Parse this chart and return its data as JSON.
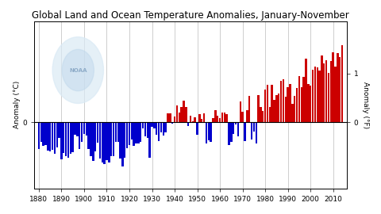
{
  "title": "Global Land and Ocean Temperature Anomalies, January-November",
  "ylabel_left": "Anomaly (°C)",
  "ylabel_right": "Anomaly (°F)",
  "years": [
    1880,
    1881,
    1882,
    1883,
    1884,
    1885,
    1886,
    1887,
    1888,
    1889,
    1890,
    1891,
    1892,
    1893,
    1894,
    1895,
    1896,
    1897,
    1898,
    1899,
    1900,
    1901,
    1902,
    1903,
    1904,
    1905,
    1906,
    1907,
    1908,
    1909,
    1910,
    1911,
    1912,
    1913,
    1914,
    1915,
    1916,
    1917,
    1918,
    1919,
    1920,
    1921,
    1922,
    1923,
    1924,
    1925,
    1926,
    1927,
    1928,
    1929,
    1930,
    1931,
    1932,
    1933,
    1934,
    1935,
    1936,
    1937,
    1938,
    1939,
    1940,
    1941,
    1942,
    1943,
    1944,
    1945,
    1946,
    1947,
    1948,
    1949,
    1950,
    1951,
    1952,
    1953,
    1954,
    1955,
    1956,
    1957,
    1958,
    1959,
    1960,
    1961,
    1962,
    1963,
    1964,
    1965,
    1966,
    1967,
    1968,
    1969,
    1970,
    1971,
    1972,
    1973,
    1974,
    1975,
    1976,
    1977,
    1978,
    1979,
    1980,
    1981,
    1982,
    1983,
    1984,
    1985,
    1986,
    1987,
    1988,
    1989,
    1990,
    1991,
    1992,
    1993,
    1994,
    1995,
    1996,
    1997,
    1998,
    1999,
    2000,
    2001,
    2002,
    2003,
    2004,
    2005,
    2006,
    2007,
    2008,
    2009,
    2010,
    2011,
    2012,
    2013,
    2014
  ],
  "anomalies": [
    -0.3,
    -0.22,
    -0.27,
    -0.26,
    -0.32,
    -0.33,
    -0.31,
    -0.36,
    -0.28,
    -0.18,
    -0.42,
    -0.35,
    -0.38,
    -0.4,
    -0.36,
    -0.34,
    -0.14,
    -0.16,
    -0.3,
    -0.22,
    -0.13,
    -0.15,
    -0.3,
    -0.38,
    -0.44,
    -0.33,
    -0.23,
    -0.41,
    -0.46,
    -0.47,
    -0.43,
    -0.46,
    -0.38,
    -0.38,
    -0.22,
    -0.22,
    -0.41,
    -0.5,
    -0.4,
    -0.29,
    -0.26,
    -0.19,
    -0.27,
    -0.24,
    -0.24,
    -0.22,
    -0.07,
    -0.16,
    -0.18,
    -0.4,
    -0.05,
    -0.07,
    -0.14,
    -0.21,
    -0.11,
    -0.15,
    -0.11,
    0.1,
    0.1,
    -0.01,
    0.07,
    0.19,
    0.11,
    0.18,
    0.25,
    0.18,
    -0.04,
    0.08,
    0.01,
    0.06,
    -0.14,
    0.09,
    0.04,
    0.1,
    -0.24,
    -0.2,
    -0.22,
    0.05,
    0.14,
    0.08,
    0.05,
    0.11,
    0.11,
    0.09,
    -0.26,
    -0.22,
    -0.13,
    -0.02,
    -0.16,
    0.24,
    0.12,
    -0.21,
    0.14,
    0.3,
    -0.19,
    -0.1,
    -0.24,
    0.31,
    0.18,
    0.13,
    0.37,
    0.43,
    0.18,
    0.43,
    0.26,
    0.31,
    0.33,
    0.47,
    0.49,
    0.29,
    0.4,
    0.44,
    0.21,
    0.3,
    0.39,
    0.53,
    0.4,
    0.52,
    0.73,
    0.44,
    0.42,
    0.6,
    0.64,
    0.63,
    0.59,
    0.76,
    0.67,
    0.71,
    0.56,
    0.7,
    0.8,
    0.64,
    0.79,
    0.74,
    0.88
  ],
  "xlim": [
    1878,
    2016
  ],
  "ylim_c": [
    -0.75,
    1.15
  ],
  "xticks": [
    1880,
    1890,
    1900,
    1910,
    1920,
    1930,
    1940,
    1950,
    1960,
    1970,
    1980,
    1990,
    2000,
    2010
  ],
  "color_positive": "#cc0000",
  "color_negative": "#0000cc",
  "background_color": "#ffffff",
  "grid_color": "#bbbbbb",
  "title_fontsize": 8.5,
  "tick_fontsize": 6.5,
  "label_fontsize": 6.5,
  "bar_width": 0.85
}
